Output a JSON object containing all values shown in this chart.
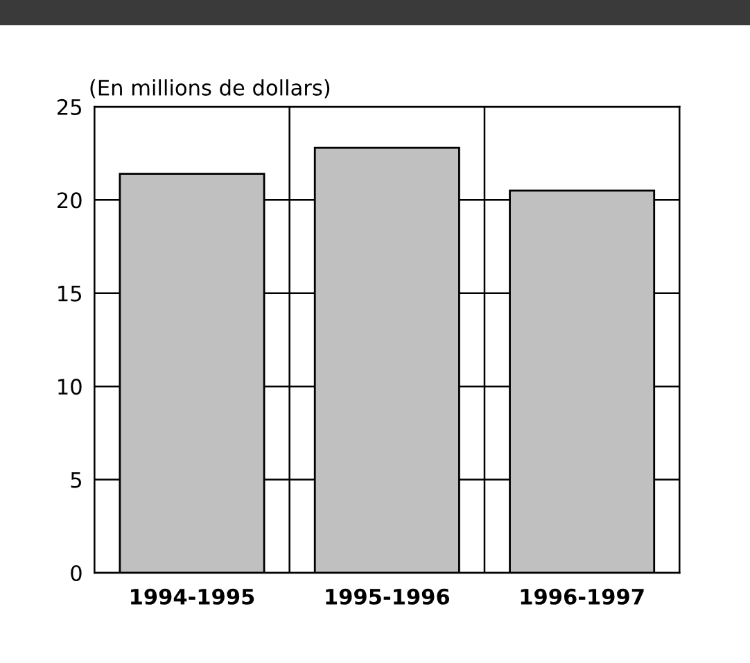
{
  "chart_data": {
    "type": "bar",
    "ylabel": "(En millions de dollars)",
    "categories": [
      "1994-1995",
      "1995-1996",
      "1996-1997"
    ],
    "values": [
      21.4,
      22.8,
      20.5
    ],
    "color": "#c0c0c0",
    "ylim": [
      0,
      25
    ],
    "yticks": [
      0,
      5,
      10,
      15,
      20,
      25
    ],
    "grid": true,
    "legend": false
  }
}
